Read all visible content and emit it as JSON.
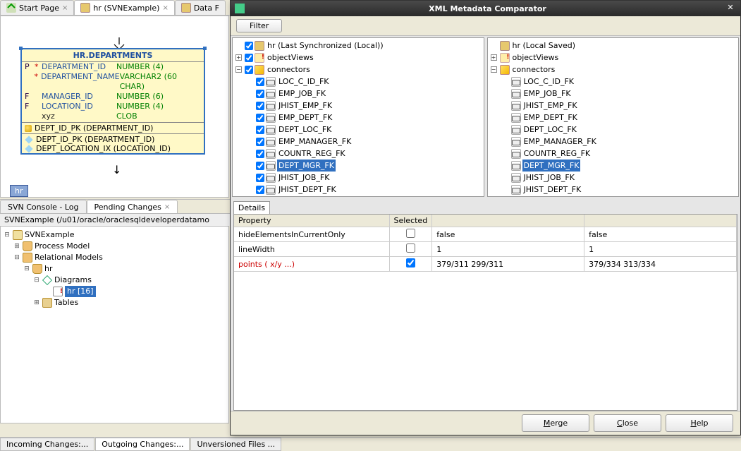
{
  "main_tabs": {
    "start": "Start Page",
    "hr": "hr (SVNExample)",
    "dataf": "Data F"
  },
  "entity": {
    "title": "HR.DEPARTMENTS",
    "rows": [
      {
        "flag": "P",
        "ast": "*",
        "name": "DEPARTMENT_ID",
        "type": "NUMBER (4)"
      },
      {
        "flag": "",
        "ast": "*",
        "name": "DEPARTMENT_NAME",
        "type": "VARCHAR2 (60 CHAR)"
      },
      {
        "flag": "F",
        "ast": "",
        "name": "MANAGER_ID",
        "type": "NUMBER (6)"
      },
      {
        "flag": "F",
        "ast": "",
        "name": "LOCATION_ID",
        "type": "NUMBER (4)"
      },
      {
        "flag": "",
        "ast": "",
        "name": "xyz",
        "type": "CLOB",
        "cls": "xyz"
      }
    ],
    "pk1": "DEPT_ID_PK (DEPARTMENT_ID)",
    "pk2": "DEPT_ID_PK (DEPARTMENT_ID)",
    "ix": "DEPT_LOCATION_IX (LOCATION_ID)"
  },
  "breadcrumb": "hr",
  "lower_tabs": {
    "svn": "SVN Console - Log",
    "pending": "Pending Changes"
  },
  "path_bar": "SVNExample (/u01/oracle/oraclesqldeveloperdatamo",
  "bottom_tree": {
    "root": "SVNExample",
    "pm": "Process Model",
    "rm": "Relational Models",
    "hr": "hr",
    "diagrams": "Diagrams",
    "hr16": "hr [16]",
    "tables": "Tables"
  },
  "footer_tabs": {
    "in": "Incoming Changes:...",
    "out": "Outgoing Changes:...",
    "unv": "Unversioned Files ..."
  },
  "modal": {
    "title": "XML Metadata Comparator",
    "filter": "Filter",
    "left_root": "hr (Last Synchronized (Local))",
    "right_root": "hr (Local Saved)",
    "node_objectViews": "objectViews",
    "node_connectors": "connectors",
    "fk": [
      "LOC_C_ID_FK",
      "EMP_JOB_FK",
      "JHIST_EMP_FK",
      "EMP_DEPT_FK",
      "DEPT_LOC_FK",
      "EMP_MANAGER_FK",
      "COUNTR_REG_FK",
      "DEPT_MGR_FK",
      "JHIST_JOB_FK",
      "JHIST_DEPT_FK"
    ],
    "selected_fk": "DEPT_MGR_FK",
    "details_tab": "Details",
    "prop_header": "Property",
    "sel_header": "Selected",
    "rows": [
      {
        "prop": "hideElementsInCurrentOnly",
        "sel": false,
        "a": "false",
        "b": "false"
      },
      {
        "prop": "lineWidth",
        "sel": false,
        "a": "1",
        "b": "1"
      },
      {
        "prop": "points ( x/y  ...)",
        "sel": true,
        "a": "379/311  299/311",
        "b": "379/334  313/334",
        "red": true
      }
    ],
    "buttons": {
      "merge": "Merge",
      "close": "Close",
      "help": "Help"
    }
  }
}
